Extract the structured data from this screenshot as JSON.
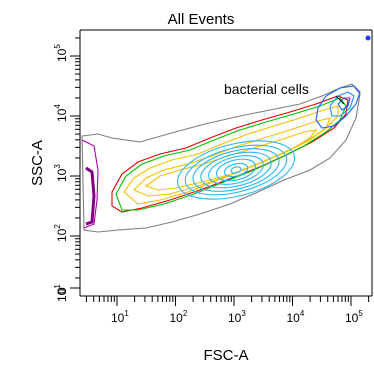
{
  "chart_data": {
    "type": "contour",
    "title": "All Events",
    "xlabel": "FSC-A",
    "ylabel": "SSC-A",
    "x_scale": "biexponential",
    "y_scale": "biexponential",
    "x_ticks": [
      {
        "base": "10",
        "exp": "1",
        "value": 10
      },
      {
        "base": "10",
        "exp": "2",
        "value": 100
      },
      {
        "base": "10",
        "exp": "3",
        "value": 1000
      },
      {
        "base": "10",
        "exp": "4",
        "value": 10000
      },
      {
        "base": "10",
        "exp": "5",
        "value": 100000
      }
    ],
    "y_ticks": [
      {
        "base": "0",
        "exp": "",
        "value": 0
      },
      {
        "base": "10",
        "exp": "1",
        "value": 10
      },
      {
        "base": "10",
        "exp": "2",
        "value": 100
      },
      {
        "base": "10",
        "exp": "3",
        "value": 1000
      },
      {
        "base": "10",
        "exp": "4",
        "value": 10000
      },
      {
        "base": "10",
        "exp": "5",
        "value": 100000
      }
    ],
    "annotation": "bacterial cells",
    "population_center_log10": {
      "fsc": 3.0,
      "ssc": 3.05
    },
    "contour_colors": [
      "#808080",
      "#800080",
      "#ff0000",
      "#00cc00",
      "#ffcc00",
      "#ffd700",
      "#00bfff",
      "#1e90ff"
    ],
    "grid": false,
    "legend": "none"
  }
}
